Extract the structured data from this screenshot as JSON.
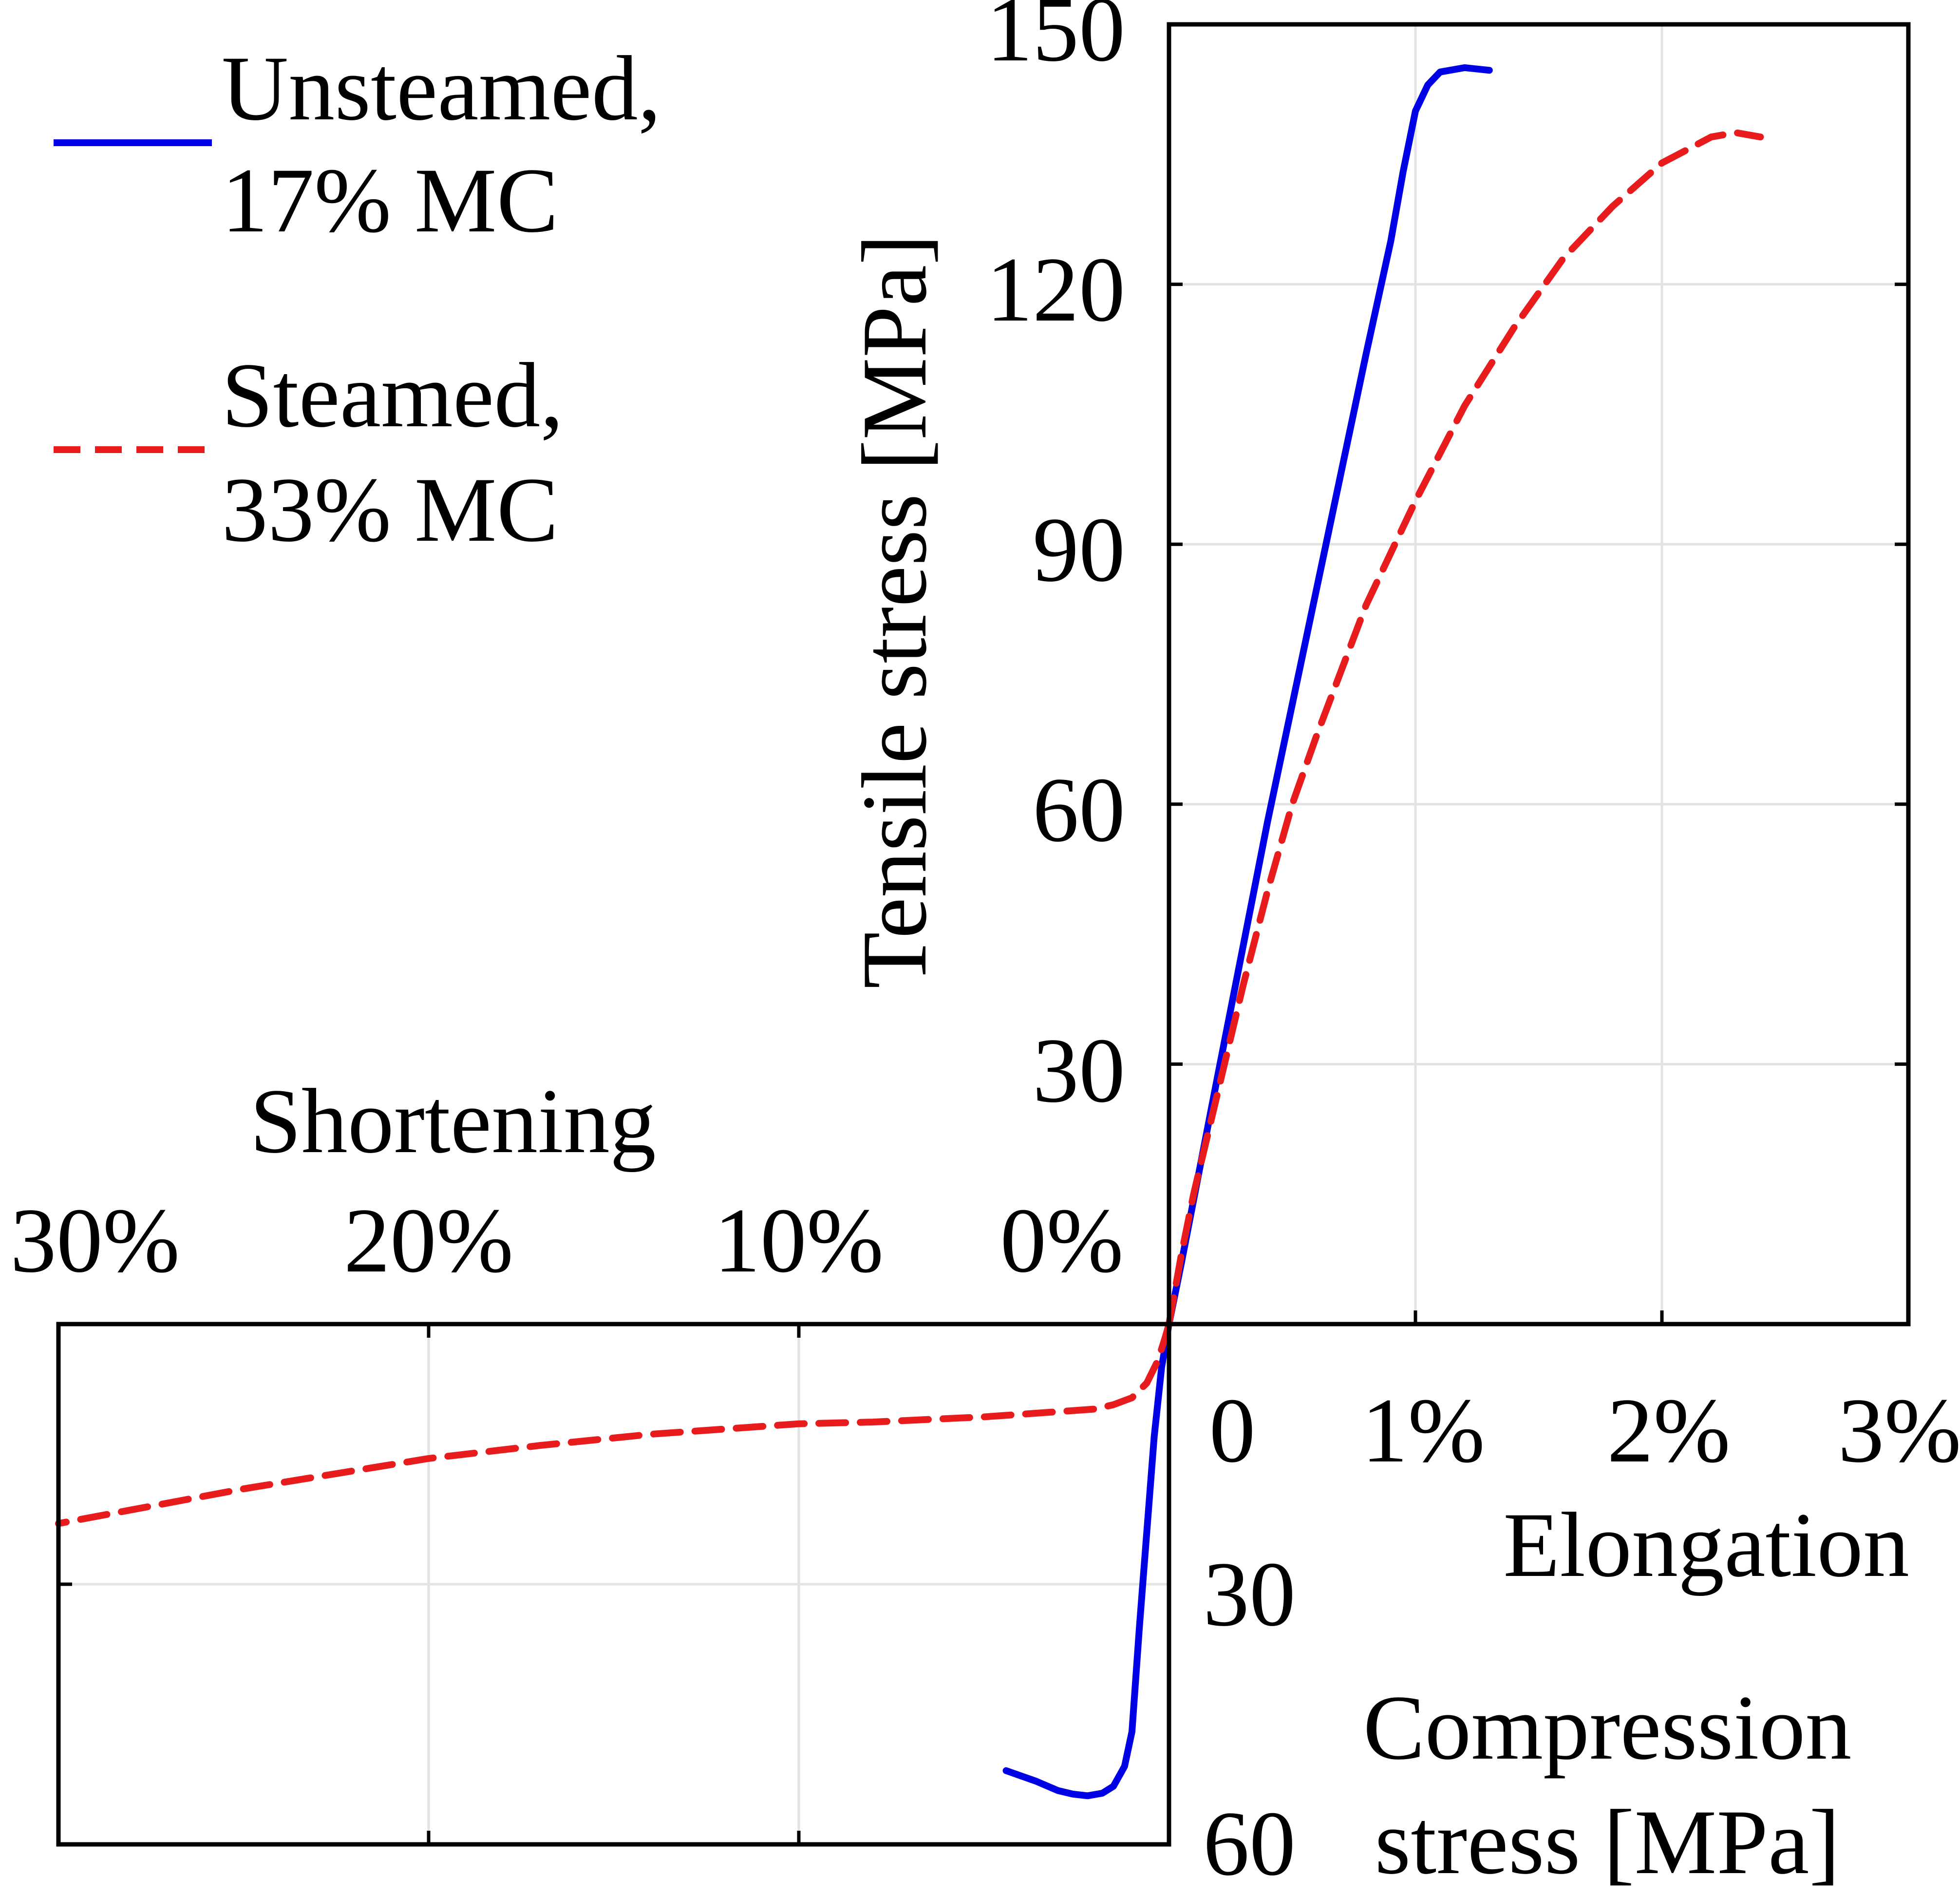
{
  "chart_data": {
    "type": "line",
    "legend_position": "top-left",
    "grid": true,
    "colors": {
      "unsteamed": "#0000e6",
      "steamed": "#e81c1c"
    },
    "series": [
      {
        "name": "Unsteamed,",
        "name_line2": "17% MC",
        "color": "#0000e6",
        "dash": "solid",
        "tension": {
          "x": [
            0,
            0.05,
            0.2,
            0.4,
            0.6,
            0.8,
            0.9,
            0.95,
            1.0,
            1.05,
            1.1,
            1.2,
            1.3
          ],
          "y": [
            0,
            7,
            29,
            58,
            85,
            112,
            125,
            133,
            140,
            143,
            144.5,
            145,
            144.7
          ]
        },
        "compression": {
          "x": [
            0,
            0.2,
            0.4,
            0.8,
            1.0,
            1.2,
            1.5,
            1.8,
            2.2,
            2.6,
            3.0,
            3.6,
            4.4
          ],
          "y": [
            0,
            5,
            13,
            35,
            47,
            51,
            53.3,
            54.1,
            54.4,
            54.2,
            53.8,
            52.7,
            51.5
          ]
        }
      },
      {
        "name": "Steamed,",
        "name_line2": "33% MC",
        "color": "#e81c1c",
        "dash": "dashed",
        "tension": {
          "x": [
            0,
            0.05,
            0.1,
            0.2,
            0.3,
            0.4,
            0.5,
            0.6,
            0.8,
            1.0,
            1.2,
            1.4,
            1.6,
            1.8,
            2.0,
            2.2,
            2.3,
            2.4
          ],
          "y": [
            0,
            8,
            15,
            27,
            39,
            50,
            60,
            68,
            83,
            95,
            106,
            115,
            123,
            129,
            134,
            137,
            137.5,
            137
          ]
        },
        "compression": {
          "x": [
            0,
            0.1,
            0.3,
            0.6,
            1.0,
            1.5,
            2.0,
            3.0,
            5.0,
            8.0,
            10.0,
            14.0,
            17.0,
            20.0,
            25.0,
            30.0
          ],
          "y": [
            0,
            1.5,
            4.2,
            6.8,
            8.5,
            9.3,
            9.8,
            10.1,
            10.7,
            11.3,
            11.5,
            12.7,
            14.0,
            15.5,
            19.0,
            23.0
          ]
        }
      }
    ],
    "tension_axes": {
      "xlabel": "Elongation",
      "ylabel": "Tensile stress [MPa]",
      "xlim": [
        0,
        3
      ],
      "ylim": [
        0,
        150
      ],
      "xticks": [
        0,
        1,
        2,
        3
      ],
      "xtick_labels": [
        "0",
        "1%",
        "2%",
        "3%"
      ],
      "yticks": [
        30,
        60,
        90,
        120,
        150
      ],
      "ytick_labels": [
        "30",
        "60",
        "90",
        "120",
        "150"
      ]
    },
    "compression_axes": {
      "xlabel": "Shortening",
      "ylabel_line1": "Compression",
      "ylabel_line2": "stress [MPa]",
      "xlim": [
        0,
        30
      ],
      "ylim": [
        0,
        60
      ],
      "xticks": [
        0,
        10,
        20,
        30
      ],
      "xtick_labels": [
        "0%",
        "10%",
        "20%",
        "30%"
      ],
      "yticks": [
        30,
        60
      ],
      "ytick_labels": [
        "30",
        "60"
      ]
    }
  }
}
